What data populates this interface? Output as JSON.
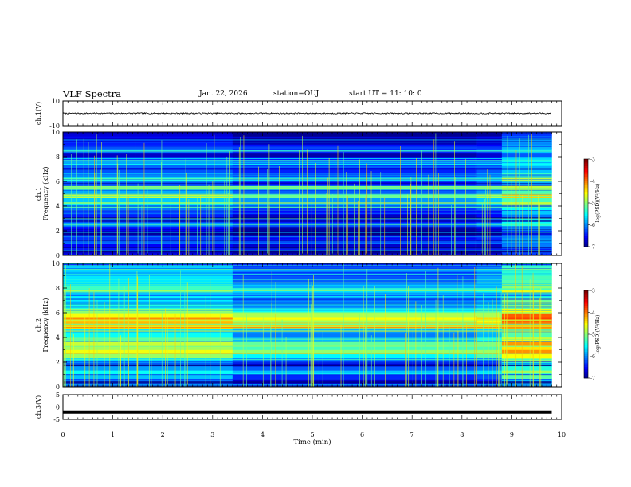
{
  "header": {
    "title": "VLF Spectra",
    "date": "Jan. 22, 2026",
    "station": "station=OUJ",
    "start": "start UT =  11: 10: 0"
  },
  "chart_data": [
    {
      "type": "line",
      "panel": "ch1-waveform",
      "ylabel": "ch.1(V)",
      "ylim": [
        -10,
        10
      ],
      "y_ticks": [
        "10",
        "-10"
      ],
      "xlim": [
        0,
        10
      ],
      "signal_level": 0.0,
      "noise_amplitude": 0.5,
      "color": "#000000"
    },
    {
      "type": "heatmap",
      "panel": "ch1-spectrogram",
      "ylabel_channel": "ch.1",
      "ylabel": "Frequency (kHz)",
      "ylim": [
        0,
        10
      ],
      "y_ticks": [
        "0",
        "2",
        "4",
        "6",
        "8",
        "10"
      ],
      "xlim": [
        0,
        9.8
      ],
      "time_segments": [
        0,
        3.4,
        8.3,
        8.8,
        9.8
      ],
      "band_levels": [
        0.1,
        0.08,
        0.12,
        0.2,
        0.16,
        0.05,
        0.12,
        0.3,
        0.22,
        0.15,
        0.18,
        0.25,
        0.4,
        0.35,
        0.55,
        0.3,
        0.45,
        0.2,
        0.4,
        0.28,
        0.22,
        0.18,
        0.25,
        0.2,
        0.1,
        0.22,
        0.18,
        0.14,
        0.12,
        0.08
      ],
      "segment_boost": [
        0.0,
        -0.06,
        -0.03,
        0.12
      ],
      "colorbar": {
        "label": "log(PSD)(V²/Hz)",
        "min": -7,
        "max": -3,
        "ticks": [
          "-3",
          "-4",
          "-5",
          "-6",
          "-7"
        ]
      }
    },
    {
      "type": "heatmap",
      "panel": "ch2-spectrogram",
      "ylabel_channel": "ch.2",
      "ylabel": "Frequency (kHz)",
      "ylim": [
        0,
        10
      ],
      "y_ticks": [
        "0",
        "2",
        "4",
        "6",
        "8",
        "10"
      ],
      "xlim": [
        0,
        9.8
      ],
      "time_segments": [
        0,
        3.4,
        8.3,
        8.8,
        9.8
      ],
      "band_levels": [
        0.2,
        0.15,
        0.25,
        0.35,
        0.25,
        0.15,
        0.3,
        0.45,
        0.55,
        0.48,
        0.52,
        0.4,
        0.3,
        0.35,
        0.55,
        0.62,
        0.66,
        0.58,
        0.45,
        0.35,
        0.3,
        0.28,
        0.32,
        0.4,
        0.35,
        0.3,
        0.28,
        0.26,
        0.3,
        0.24
      ],
      "segment_boost": [
        0.06,
        -0.06,
        -0.02,
        0.18
      ],
      "colorbar": {
        "label": "log(PSD)(V²/Hz)",
        "min": -7,
        "max": -3,
        "ticks": [
          "-3",
          "-4",
          "-5",
          "-6",
          "-7"
        ]
      }
    },
    {
      "type": "line",
      "panel": "ch3-waveform",
      "ylabel": "ch.3(V)",
      "ylim": [
        -5,
        5
      ],
      "y_ticks": [
        "5",
        "0",
        "-5"
      ],
      "xlim": [
        0,
        10
      ],
      "signal_level": -2.0,
      "color": "#000000"
    }
  ],
  "x_axis": {
    "label": "Time (min)",
    "ticks": [
      "0",
      "1",
      "2",
      "3",
      "4",
      "5",
      "6",
      "7",
      "8",
      "9",
      "10"
    ]
  }
}
